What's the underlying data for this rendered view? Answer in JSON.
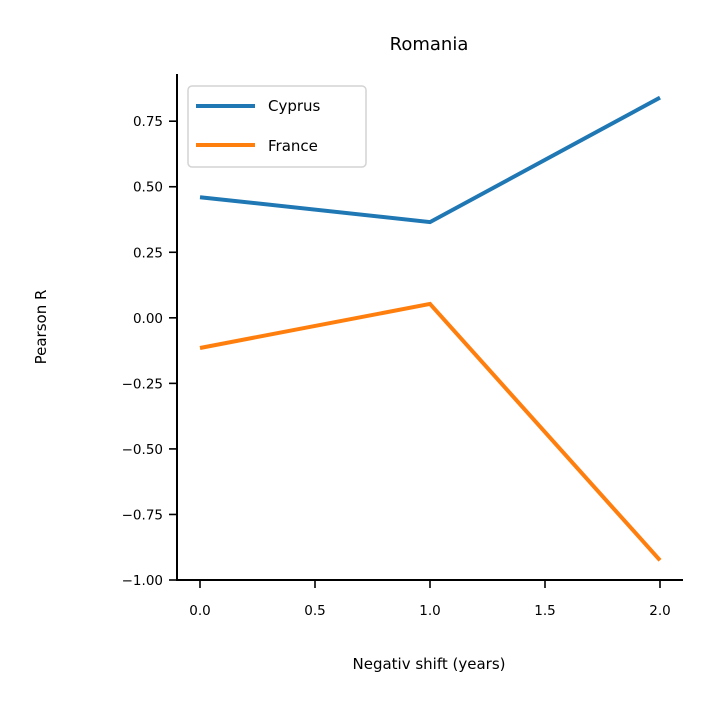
{
  "chart_data": {
    "type": "line",
    "title": "Romania",
    "xlabel": "Negativ shift (years)",
    "ylabel": "Pearson R",
    "x": [
      0,
      1,
      2
    ],
    "xlim": [
      -0.1,
      2.1
    ],
    "ylim": [
      -1.0,
      0.93
    ],
    "xticks": [
      0,
      0.5,
      1,
      1.5,
      2
    ],
    "xtick_labels": [
      "0.0",
      "0.5",
      "1.0",
      "1.5",
      "2.0"
    ],
    "yticks": [
      0.75,
      0.5,
      0.25,
      0,
      -0.25,
      -0.5,
      -0.75,
      -1.0
    ],
    "ytick_labels": [
      "0.75",
      "0.50",
      "0.25",
      "0.00",
      "−0.25",
      "−0.50",
      "−0.75",
      "−1.00"
    ],
    "grid": false,
    "legend_position": "top-left",
    "series": [
      {
        "name": "Cyprus",
        "color": "#1f77b4",
        "values": [
          0.46,
          0.365,
          0.84
        ]
      },
      {
        "name": "France",
        "color": "#ff7f0e",
        "values": [
          -0.115,
          0.053,
          -0.925
        ]
      }
    ]
  }
}
